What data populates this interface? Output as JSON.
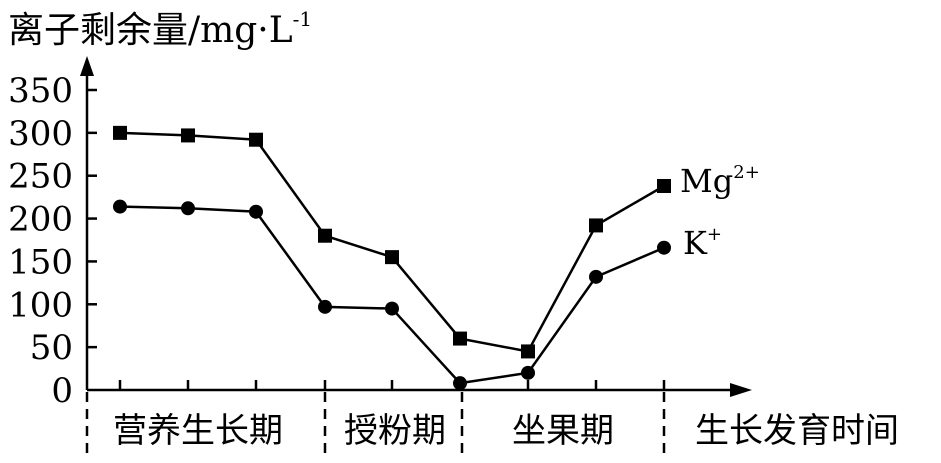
{
  "chart_data": {
    "type": "line",
    "ylabel": "离子剩余量/mg·L",
    "ylabel_exponent": "-1",
    "xlabel": "生长发育时间",
    "ylim": [
      0,
      350
    ],
    "yticks": [
      "0",
      "50",
      "100",
      "150",
      "200",
      "250",
      "300",
      "350"
    ],
    "periods": [
      "营养生长期",
      "授粉期",
      "坐果期"
    ],
    "series": [
      {
        "name": "Mg",
        "name_sup": "2+",
        "marker": "square",
        "values": [
          300,
          297,
          292,
          180,
          155,
          60,
          45,
          192,
          238
        ]
      },
      {
        "name": "K",
        "name_sup": "+",
        "marker": "circle",
        "values": [
          214,
          212,
          208,
          97,
          95,
          8,
          20,
          132,
          166
        ]
      }
    ],
    "grid": false,
    "legend": "inline labels at line ends"
  }
}
